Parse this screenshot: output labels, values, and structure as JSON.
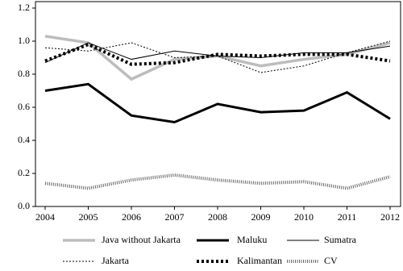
{
  "chart_data": {
    "type": "line",
    "categories": [
      "2004",
      "2005",
      "2006",
      "2007",
      "2008",
      "2009",
      "2010",
      "2011",
      "2012"
    ],
    "series": [
      {
        "name": "Java without Jakarta",
        "color": "#bdbdbd",
        "values": [
          1.03,
          0.99,
          0.77,
          0.89,
          0.91,
          0.85,
          0.89,
          0.92,
          0.99
        ]
      },
      {
        "name": "Maluku",
        "color": "#000000",
        "values": [
          0.7,
          0.74,
          0.55,
          0.51,
          0.62,
          0.57,
          0.58,
          0.69,
          0.53
        ]
      },
      {
        "name": "Sumatra",
        "color": "#000000",
        "values": [
          0.87,
          0.99,
          0.89,
          0.94,
          0.91,
          0.9,
          0.93,
          0.93,
          0.97
        ]
      },
      {
        "name": "Jakarta",
        "color": "#000000",
        "values": [
          0.96,
          0.94,
          0.99,
          0.9,
          0.91,
          0.81,
          0.85,
          0.93,
          1.0
        ]
      },
      {
        "name": "Kalimantan",
        "color": "#000000",
        "values": [
          0.88,
          0.98,
          0.86,
          0.87,
          0.92,
          0.91,
          0.92,
          0.92,
          0.88
        ]
      },
      {
        "name": "CV",
        "color": "#666666",
        "values": [
          0.14,
          0.11,
          0.16,
          0.19,
          0.16,
          0.14,
          0.15,
          0.11,
          0.18
        ]
      }
    ],
    "ylim": [
      0,
      1.2
    ],
    "yticks": [
      {
        "value": 0,
        "label": "0.0"
      },
      0.2,
      0.4,
      0.6,
      0.8,
      {
        "value": 1,
        "label": "1.0"
      },
      1.2
    ],
    "grid": false
  }
}
